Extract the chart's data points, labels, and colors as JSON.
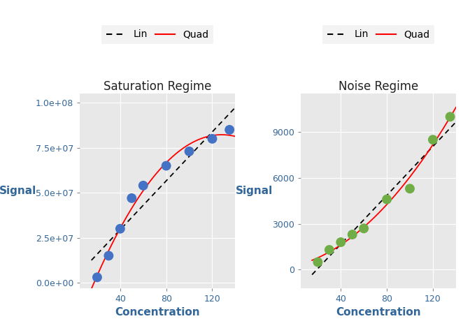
{
  "sat_x": [
    20,
    30,
    40,
    50,
    60,
    80,
    100,
    120,
    135
  ],
  "sat_y": [
    3000000.0,
    15000000.0,
    30000000.0,
    47000000.0,
    54000000.0,
    65000000.0,
    73000000.0,
    80000000.0,
    85000000.0
  ],
  "noise_x": [
    20,
    30,
    40,
    50,
    60,
    80,
    100,
    120,
    135
  ],
  "noise_y": [
    500,
    1300,
    1800,
    2300,
    2700,
    4600,
    5300,
    8500,
    10000
  ],
  "sat_title": "Saturation Regime",
  "noise_title": "Noise Regime",
  "xlabel": "Concentration",
  "ylabel_left": "Signal",
  "ylabel_right": "Signal",
  "sat_point_color": "#4472C4",
  "noise_point_color": "#70AD47",
  "lin_color": "#000000",
  "quad_color": "#FF0000",
  "bg_color": "#E8E8E8",
  "sat_ylim": [
    -3000000.0,
    105000000.0
  ],
  "sat_yticks": [
    0.0,
    25000000.0,
    50000000.0,
    75000000.0,
    100000000.0
  ],
  "sat_ytick_labels": [
    "0.0e+00",
    "2.5e+07",
    "5.0e+07",
    "7.5e+07",
    "1.0e+08"
  ],
  "noise_ylim": [
    -1200,
    11500
  ],
  "noise_yticks": [
    0,
    3000,
    6000,
    9000
  ],
  "noise_ytick_labels": [
    "0",
    "3000",
    "6000",
    "9000"
  ],
  "xticks": [
    40,
    80,
    120
  ],
  "title_fontsize": 12,
  "label_fontsize": 11,
  "tick_fontsize": 9,
  "legend_fontsize": 10,
  "point_size": 100,
  "lin_linewidth": 1.3,
  "quad_linewidth": 1.3
}
